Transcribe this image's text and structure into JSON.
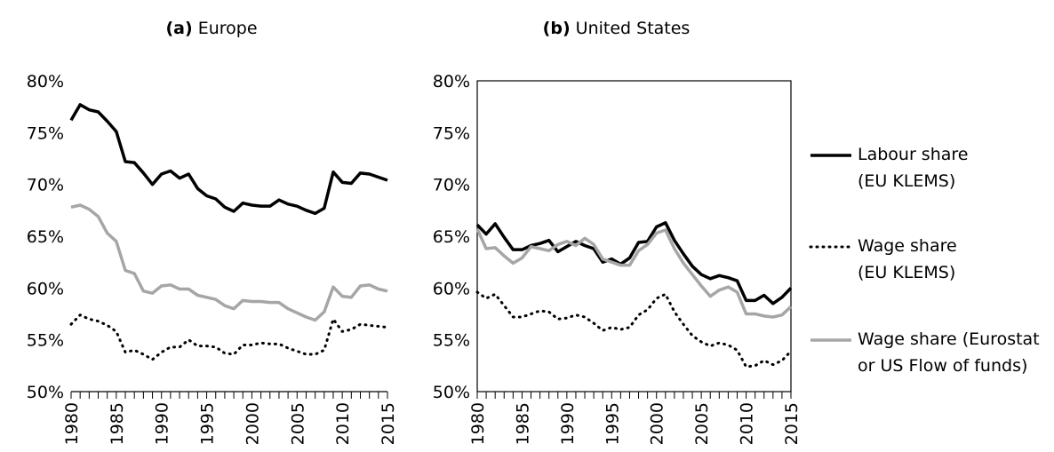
{
  "chart_data": [
    {
      "type": "line",
      "panel": "(a)",
      "title": "Europe",
      "frame": false,
      "x": [
        1980,
        1981,
        1982,
        1983,
        1984,
        1985,
        1986,
        1987,
        1988,
        1989,
        1990,
        1991,
        1992,
        1993,
        1994,
        1995,
        1996,
        1997,
        1998,
        1999,
        2000,
        2001,
        2002,
        2003,
        2004,
        2005,
        2006,
        2007,
        2008,
        2009,
        2010,
        2011,
        2012,
        2013,
        2014,
        2015
      ],
      "xlim": [
        1980,
        2015
      ],
      "xticks": [
        1980,
        1985,
        1990,
        1995,
        2000,
        2005,
        2010,
        2015
      ],
      "ylim": [
        50,
        80
      ],
      "yticks": [
        {
          "value": 50,
          "label": "50%"
        },
        {
          "value": 55,
          "label": "55%"
        },
        {
          "value": 60,
          "label": "60%"
        },
        {
          "value": 65,
          "label": "65%"
        },
        {
          "value": 70,
          "label": "70%"
        },
        {
          "value": 75,
          "label": "75%"
        },
        {
          "value": 80,
          "label": "80%"
        }
      ],
      "series": [
        {
          "name": "Labour share\n(EU KLEMS)",
          "color": "#000000",
          "linestyle": "solid",
          "values": [
            76.2,
            77.7,
            77.2,
            77.0,
            76.1,
            75.1,
            72.2,
            72.1,
            71.1,
            70.0,
            71.0,
            71.3,
            70.6,
            71.0,
            69.6,
            68.9,
            68.6,
            67.8,
            67.4,
            68.2,
            68.0,
            67.9,
            67.9,
            68.5,
            68.1,
            67.9,
            67.5,
            67.2,
            67.7,
            71.2,
            70.2,
            70.1,
            71.1,
            71.0,
            70.7,
            70.4
          ]
        },
        {
          "name": "Wage share\n(EU KLEMS)",
          "color": "#000000",
          "linestyle": "dotted",
          "values": [
            56.5,
            57.4,
            57.0,
            56.8,
            56.4,
            55.8,
            53.8,
            54.0,
            53.6,
            53.1,
            53.8,
            54.3,
            54.3,
            55.0,
            54.4,
            54.4,
            54.3,
            53.7,
            53.6,
            54.5,
            54.5,
            54.7,
            54.6,
            54.6,
            54.2,
            53.9,
            53.6,
            53.6,
            54.0,
            57.0,
            55.8,
            56.0,
            56.5,
            56.4,
            56.3,
            56.2
          ]
        },
        {
          "name": "Wage share (Eurostat\nor US Flow of funds)",
          "color": "#a6a6a6",
          "linestyle": "solid",
          "values": [
            67.8,
            68.0,
            67.6,
            66.9,
            65.3,
            64.5,
            61.7,
            61.4,
            59.7,
            59.5,
            60.2,
            60.3,
            59.9,
            59.9,
            59.3,
            59.1,
            58.9,
            58.3,
            58.0,
            58.8,
            58.7,
            58.7,
            58.6,
            58.6,
            58.0,
            57.6,
            57.2,
            56.9,
            57.7,
            60.1,
            59.2,
            59.1,
            60.2,
            60.3,
            59.9,
            59.7
          ]
        }
      ]
    },
    {
      "type": "line",
      "panel": "(b)",
      "title": "United States",
      "frame": true,
      "x": [
        1980,
        1981,
        1982,
        1983,
        1984,
        1985,
        1986,
        1987,
        1988,
        1989,
        1990,
        1991,
        1992,
        1993,
        1994,
        1995,
        1996,
        1997,
        1998,
        1999,
        2000,
        2001,
        2002,
        2003,
        2004,
        2005,
        2006,
        2007,
        2008,
        2009,
        2010,
        2011,
        2012,
        2013,
        2014,
        2015
      ],
      "xlim": [
        1980,
        2015
      ],
      "xticks": [
        1980,
        1985,
        1990,
        1995,
        2000,
        2005,
        2010,
        2015
      ],
      "ylim": [
        50,
        80
      ],
      "yticks": [
        {
          "value": 50,
          "label": "50%"
        },
        {
          "value": 55,
          "label": "55%"
        },
        {
          "value": 60,
          "label": "60%"
        },
        {
          "value": 65,
          "label": "65%"
        },
        {
          "value": 70,
          "label": "70%"
        },
        {
          "value": 75,
          "label": "75%"
        },
        {
          "value": 80,
          "label": "80%"
        }
      ],
      "series": [
        {
          "color": "#000000",
          "linestyle": "solid",
          "values": [
            66.1,
            65.2,
            66.2,
            64.9,
            63.7,
            63.7,
            64.1,
            64.3,
            64.6,
            63.5,
            64.0,
            64.5,
            64.1,
            63.8,
            62.5,
            62.8,
            62.3,
            62.9,
            64.4,
            64.5,
            65.9,
            66.3,
            64.6,
            63.3,
            62.1,
            61.3,
            60.9,
            61.2,
            61.0,
            60.7,
            58.8,
            58.8,
            59.3,
            58.5,
            59.1,
            60.0
          ]
        },
        {
          "color": "#000000",
          "linestyle": "dotted",
          "values": [
            59.6,
            59.0,
            59.4,
            58.3,
            57.2,
            57.2,
            57.5,
            57.8,
            57.7,
            57.0,
            57.1,
            57.4,
            57.2,
            56.6,
            55.9,
            56.2,
            56.0,
            56.2,
            57.4,
            57.9,
            59.0,
            59.4,
            57.7,
            56.5,
            55.4,
            54.8,
            54.4,
            54.7,
            54.5,
            54.0,
            52.4,
            52.5,
            53.0,
            52.6,
            53.0,
            53.9
          ]
        },
        {
          "color": "#a6a6a6",
          "linestyle": "solid",
          "values": [
            65.7,
            63.8,
            63.9,
            63.1,
            62.4,
            62.9,
            64.0,
            63.8,
            63.6,
            64.2,
            64.5,
            64.1,
            64.8,
            64.2,
            62.8,
            62.5,
            62.2,
            62.2,
            63.6,
            64.2,
            65.3,
            65.6,
            63.8,
            62.4,
            61.3,
            60.2,
            59.2,
            59.8,
            60.1,
            59.6,
            57.5,
            57.5,
            57.3,
            57.2,
            57.4,
            58.2
          ]
        }
      ]
    }
  ]
}
